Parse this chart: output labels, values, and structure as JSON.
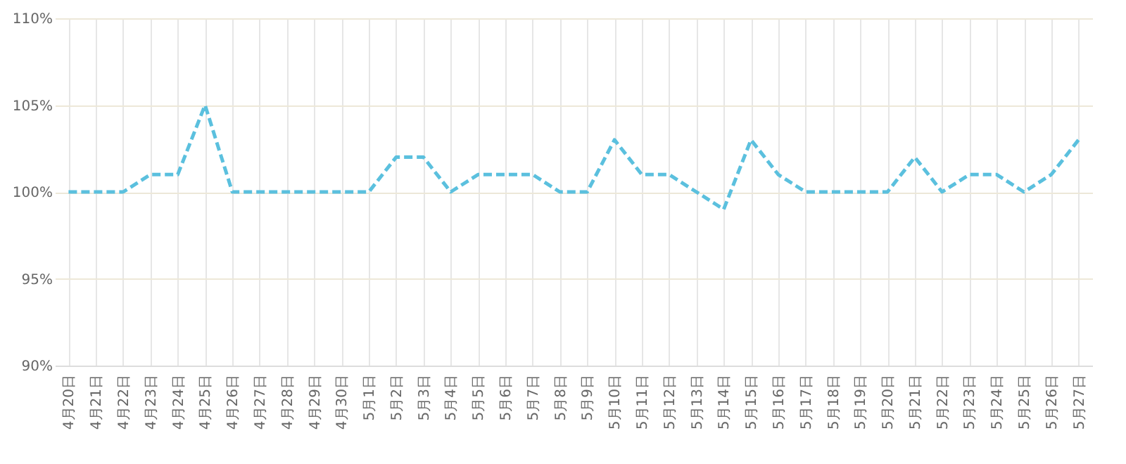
{
  "chart_data": {
    "type": "line",
    "categories": [
      "4月20日",
      "4月21日",
      "4月22日",
      "4月23日",
      "4月24日",
      "4月25日",
      "4月26日",
      "4月27日",
      "4月28日",
      "4月29日",
      "4月30日",
      "5月1日",
      "5月2日",
      "5月3日",
      "5月4日",
      "5月5日",
      "5月6日",
      "5月7日",
      "5月8日",
      "5月9日",
      "5月10日",
      "5月11日",
      "5月12日",
      "5月13日",
      "5月14日",
      "5月15日",
      "5月16日",
      "5月17日",
      "5月18日",
      "5月19日",
      "5月20日",
      "5月21日",
      "5月22日",
      "5月23日",
      "5月24日",
      "5月25日",
      "5月26日",
      "5月27日"
    ],
    "series": [
      {
        "color": "#5bc0de",
        "values": [
          100,
          100,
          100,
          101,
          101,
          105,
          100,
          100,
          100,
          100,
          100,
          100,
          102,
          102,
          100,
          101,
          101,
          101,
          100,
          100,
          103,
          101,
          101,
          100,
          99,
          103,
          101,
          100,
          100,
          100,
          100,
          102,
          100,
          101,
          101,
          100,
          101,
          103
        ]
      }
    ],
    "ylim": [
      90,
      110
    ],
    "yticks": [
      {
        "value": 90,
        "label": "90%"
      },
      {
        "value": 95,
        "label": "95%"
      },
      {
        "value": 100,
        "label": "100%"
      },
      {
        "value": 105,
        "label": "105%"
      },
      {
        "value": 110,
        "label": "110%"
      }
    ],
    "grid": true,
    "line_style": "dashed",
    "marker": "none"
  }
}
